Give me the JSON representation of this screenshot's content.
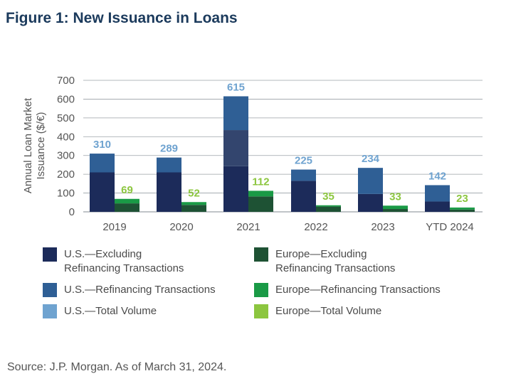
{
  "title": "Figure 1: New Issuance in Loans",
  "source": "Source: J.P. Morgan. As of March 31, 2024.",
  "chart_data": {
    "type": "bar",
    "ylabel": "Annual Loan Market Issuance ($/€)",
    "ylabel_lines": [
      "Annual Loan Market",
      "Issuance ($/€)"
    ],
    "ylim": [
      0,
      700
    ],
    "yticks": [
      0,
      100,
      200,
      300,
      400,
      500,
      600,
      700
    ],
    "grid": true,
    "categories": [
      "2019",
      "2020",
      "2021",
      "2022",
      "2023",
      "YTD 2024"
    ],
    "series": [
      {
        "name": "U.S.—Excluding Refinancing Transactions",
        "group": "us",
        "color": "#1c2b5a",
        "values": [
          210,
          210,
          243,
          165,
          95,
          55
        ]
      },
      {
        "name": "U.S.—Refinancing Transactions",
        "group": "us",
        "color": "#2f5f95",
        "values": [
          100,
          79,
          372,
          60,
          139,
          87
        ]
      },
      {
        "name": "U.S.—Total Volume",
        "group": "us",
        "color": "#6fa3d0",
        "values": [
          310,
          289,
          615,
          225,
          234,
          142
        ]
      },
      {
        "name": "Europe—Excluding Refinancing Transactions",
        "group": "eu",
        "color": "#1e5234",
        "values": [
          45,
          37,
          82,
          28,
          15,
          12
        ]
      },
      {
        "name": "Europe—Refinancing Transactions",
        "group": "eu",
        "color": "#1a9a46",
        "values": [
          24,
          15,
          30,
          7,
          18,
          11
        ]
      },
      {
        "name": "Europe—Total Volume",
        "group": "eu",
        "color": "#8cc63f",
        "values": [
          69,
          52,
          112,
          35,
          33,
          23
        ]
      }
    ],
    "legend": {
      "position": "bottom",
      "items": [
        {
          "label_lines": [
            "U.S.—Excluding",
            "Refinancing Transactions"
          ],
          "color": "#1c2b5a"
        },
        {
          "label_lines": [
            "Europe—Excluding",
            "Refinancing Transactions"
          ],
          "color": "#1e5234"
        },
        {
          "label_lines": [
            "U.S.—Refinancing Transactions"
          ],
          "color": "#2f5f95"
        },
        {
          "label_lines": [
            "Europe—Refinancing Transactions"
          ],
          "color": "#1a9a46"
        },
        {
          "label_lines": [
            "U.S.—Total Volume"
          ],
          "color": "#6fa3d0"
        },
        {
          "label_lines": [
            "Europe—Total Volume"
          ],
          "color": "#8cc63f"
        }
      ]
    },
    "colors": {
      "us_excl": "#1c2b5a",
      "us_refi": "#2f5f95",
      "us_refi_2021_upper": "#2f5f95",
      "us_refi_2021_lower": "#33456e",
      "us_total_label": "#6fa3d0",
      "eu_excl": "#1e5234",
      "eu_refi": "#1a9a46",
      "eu_total_label": "#8cc63f",
      "grid": "#9aa0a6",
      "axis_text": "#555555",
      "title": "#1b3a5c"
    }
  }
}
